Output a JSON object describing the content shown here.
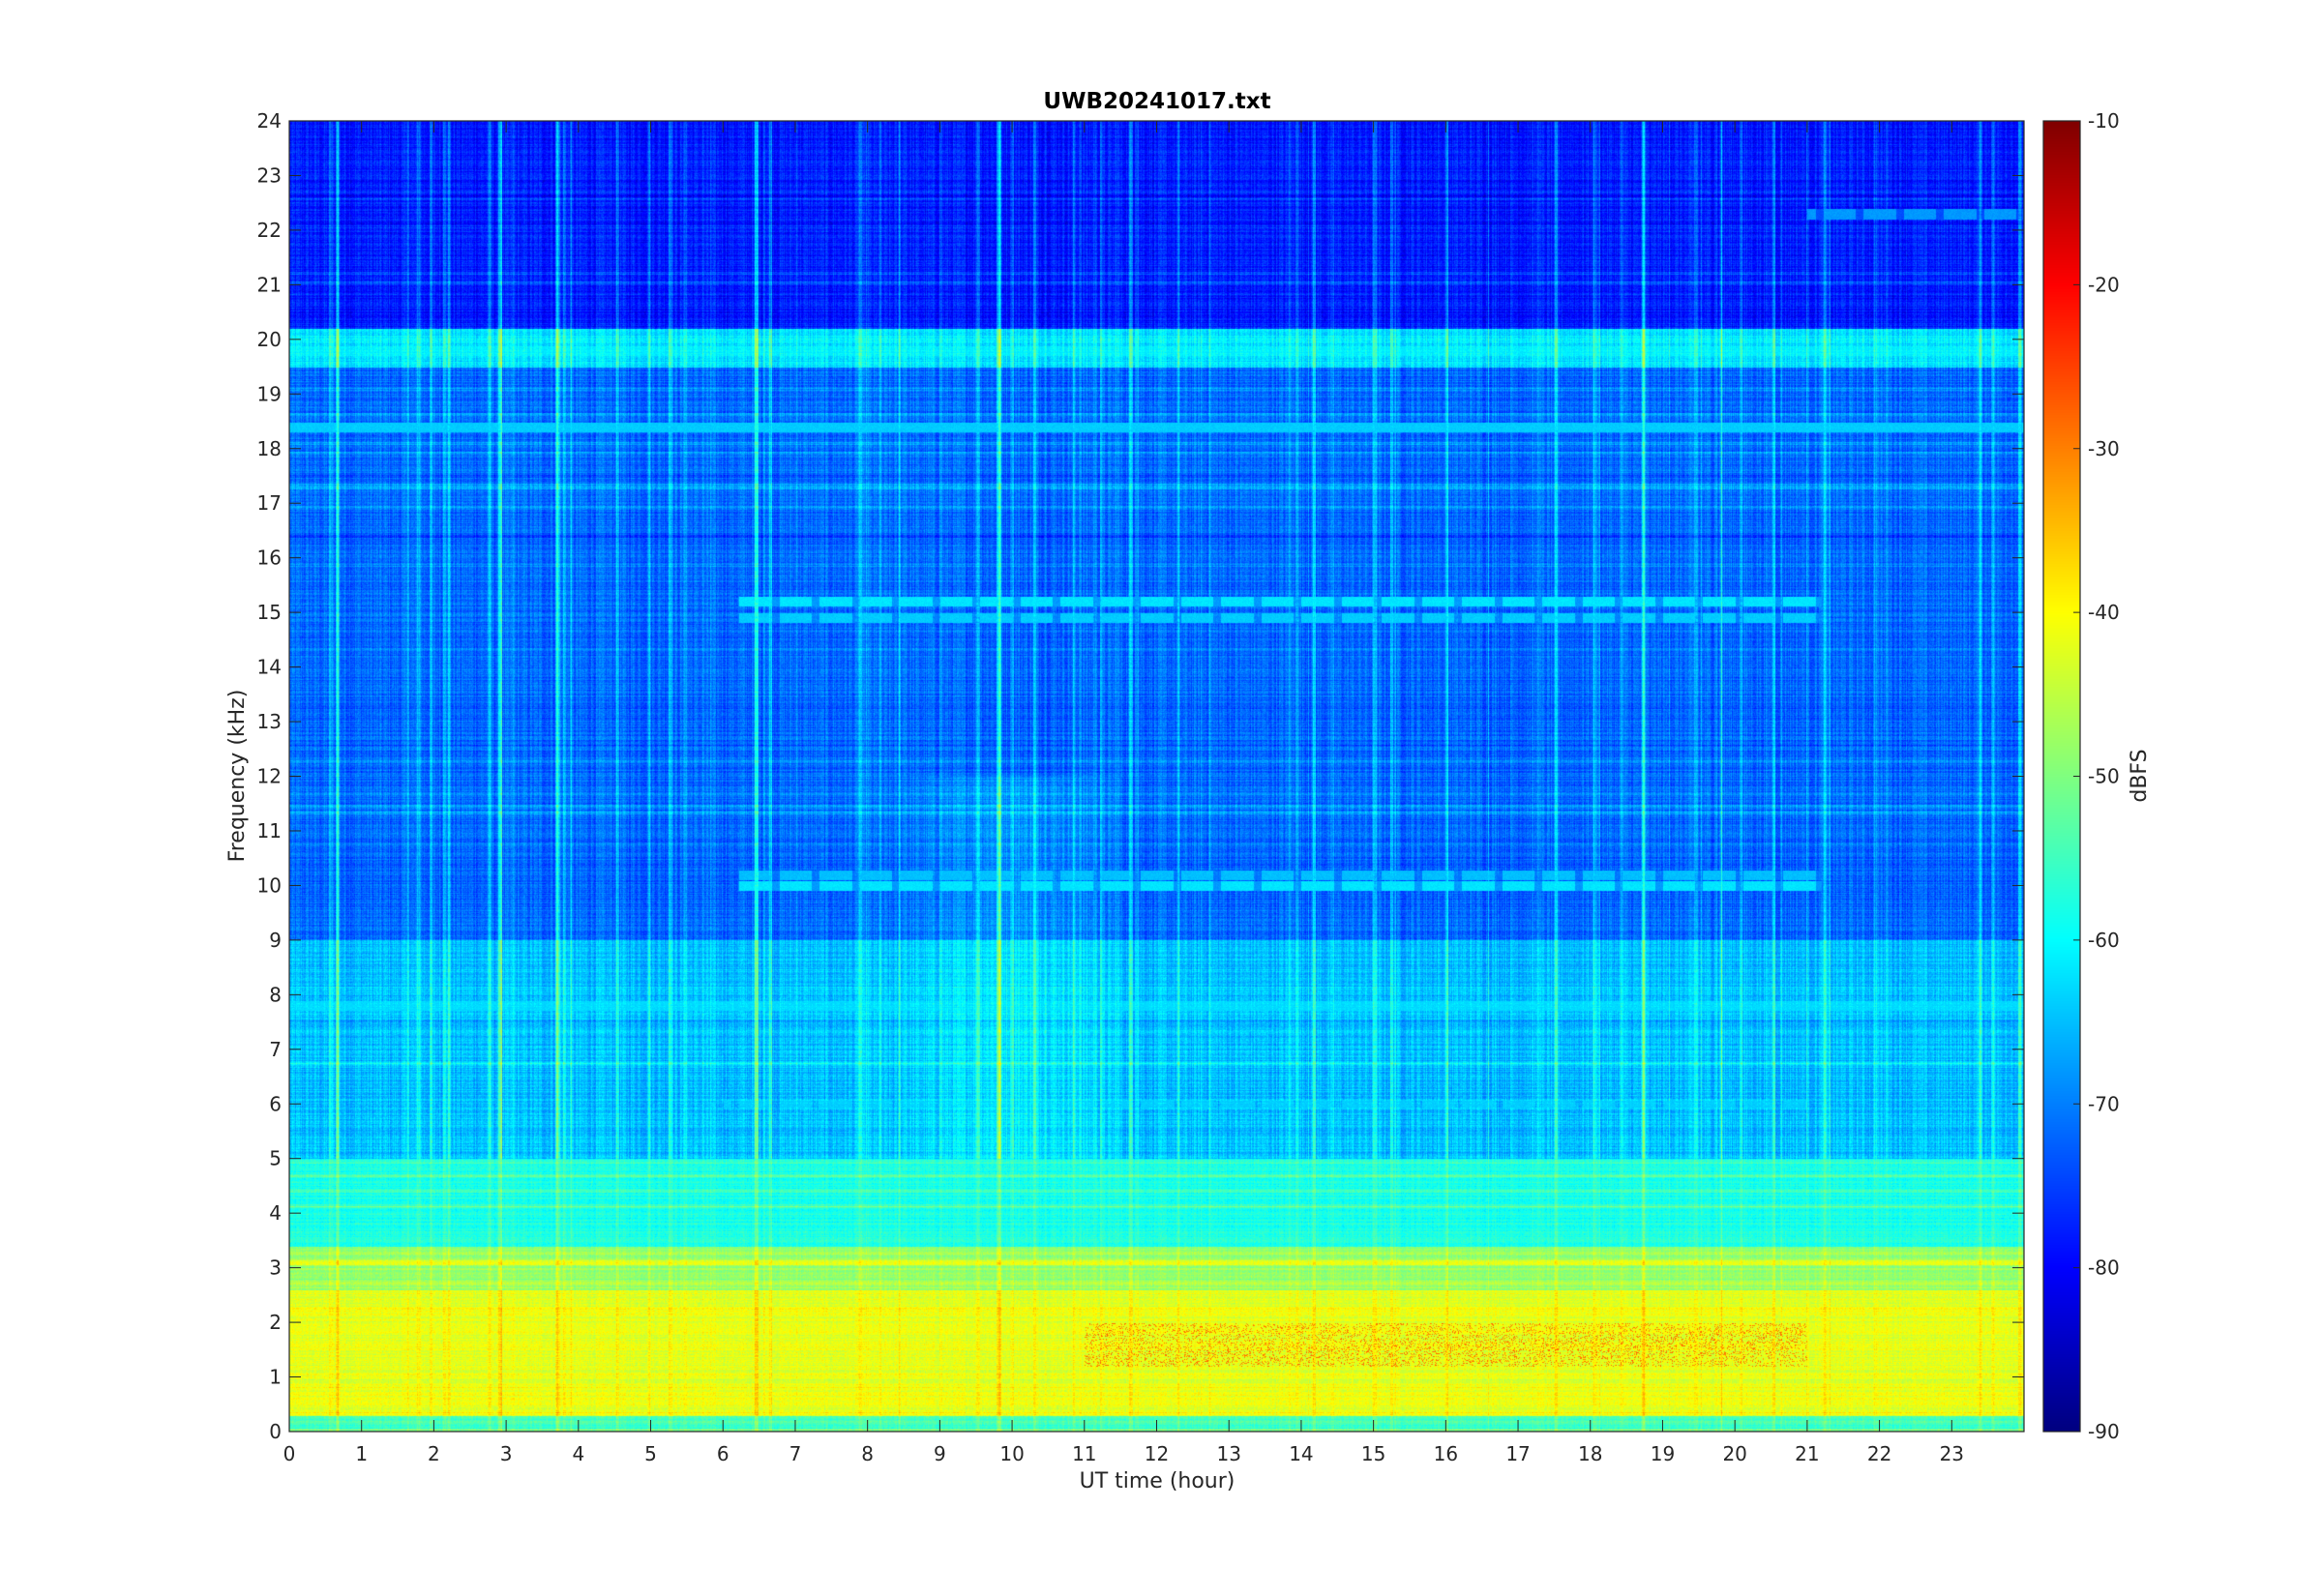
{
  "chart_data": [
    {
      "type": "heatmap",
      "title": "UWB20241017.txt",
      "xlabel": "UT time (hour)",
      "ylabel": "Frequency (kHz)",
      "xlim": [
        0,
        24
      ],
      "ylim": [
        0,
        24
      ],
      "x_ticks": [
        "0",
        "1",
        "2",
        "3",
        "4",
        "5",
        "6",
        "7",
        "8",
        "9",
        "10",
        "11",
        "12",
        "13",
        "14",
        "15",
        "16",
        "17",
        "18",
        "19",
        "20",
        "21",
        "22",
        "23"
      ],
      "y_ticks": [
        "0",
        "1",
        "2",
        "3",
        "4",
        "5",
        "6",
        "7",
        "8",
        "9",
        "10",
        "11",
        "12",
        "13",
        "14",
        "15",
        "16",
        "17",
        "18",
        "19",
        "20",
        "21",
        "22",
        "23",
        "24"
      ],
      "colormap": "jet",
      "grid": false,
      "intensity_profile": {
        "description": "Approximate power in dBFS by frequency band",
        "bands": [
          {
            "f_range_khz": [
              0,
              0.3
            ],
            "dbfs": -55
          },
          {
            "f_range_khz": [
              0.3,
              2.6
            ],
            "dbfs": -42
          },
          {
            "f_range_khz": [
              2.6,
              3.4
            ],
            "dbfs": -48
          },
          {
            "f_range_khz": [
              3.4,
              5.0
            ],
            "dbfs": -58
          },
          {
            "f_range_khz": [
              5.0,
              9.0
            ],
            "dbfs": -65
          },
          {
            "f_range_khz": [
              9.0,
              19.5
            ],
            "dbfs": -72
          },
          {
            "f_range_khz": [
              19.5,
              20.2
            ],
            "dbfs": -62
          },
          {
            "f_range_khz": [
              20.2,
              24.0
            ],
            "dbfs": -78
          }
        ],
        "horizontal_lines_khz": [
          {
            "f": 19.8,
            "dbfs": -62
          },
          {
            "f": 18.4,
            "dbfs": -64
          },
          {
            "f": 15.2,
            "dbfs": -62,
            "x_range": [
              6.2,
              21.2
            ]
          },
          {
            "f": 14.9,
            "dbfs": -64,
            "x_range": [
              6.2,
              21.2
            ]
          },
          {
            "f": 10.0,
            "dbfs": -62,
            "x_range": [
              6.2,
              21.2
            ]
          },
          {
            "f": 10.2,
            "dbfs": -65,
            "x_range": [
              6.2,
              21.2
            ]
          },
          {
            "f": 22.3,
            "dbfs": -68,
            "x_range": [
              21.0,
              24.0
            ]
          },
          {
            "f": 7.8,
            "dbfs": -63
          },
          {
            "f": 6.0,
            "dbfs": -64,
            "x_range": [
              6.0,
              21.0
            ]
          }
        ],
        "strong_low_band": {
          "f_range_khz": [
            1.2,
            2.0
          ],
          "x_range": [
            11.0,
            21.0
          ],
          "dbfs": -30
        }
      }
    },
    {
      "type": "colorbar",
      "label": "dBFS",
      "clim": [
        -90,
        -10
      ],
      "ticks": [
        "-90",
        "-80",
        "-70",
        "-60",
        "-50",
        "-40",
        "-30",
        "-20",
        "-10"
      ],
      "colormap": "jet"
    }
  ]
}
